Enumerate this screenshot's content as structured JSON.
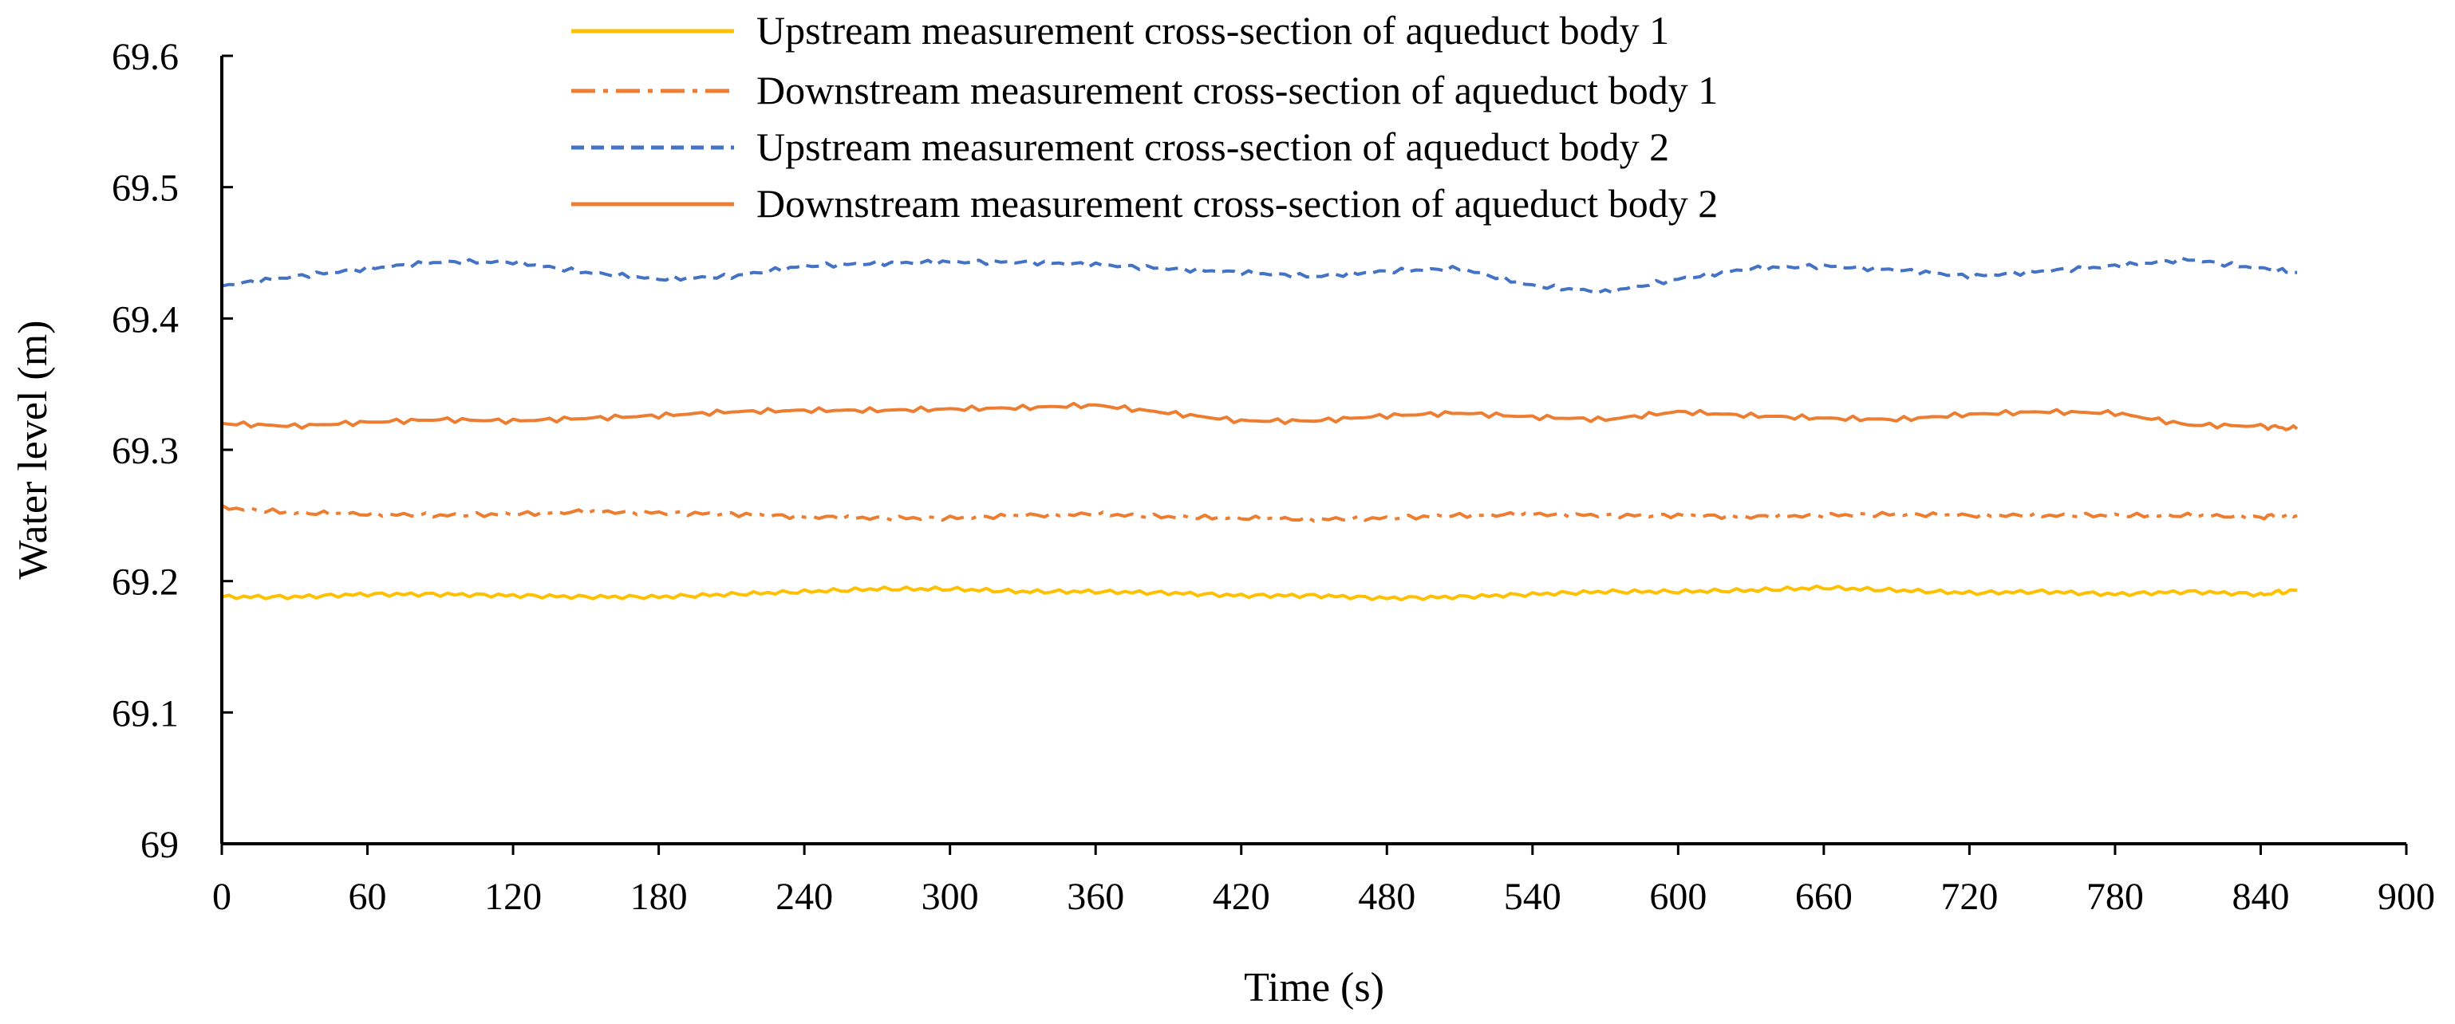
{
  "chart_data": {
    "type": "line",
    "title": "",
    "xlabel": "Time (s)",
    "ylabel": "Water level (m)",
    "xlim": [
      0,
      900
    ],
    "ylim": [
      69,
      69.6
    ],
    "grid": false,
    "legend_position": "top-center",
    "x_ticks": [
      "0",
      "60",
      "120",
      "180",
      "240",
      "300",
      "360",
      "420",
      "480",
      "540",
      "600",
      "660",
      "720",
      "780",
      "840",
      "900"
    ],
    "y_ticks": [
      "69",
      "69.1",
      "69.2",
      "69.3",
      "69.4",
      "69.5",
      "69.6"
    ],
    "x": [
      0,
      30,
      60,
      90,
      120,
      150,
      180,
      210,
      240,
      270,
      300,
      330,
      360,
      390,
      420,
      450,
      480,
      510,
      540,
      570,
      600,
      630,
      660,
      690,
      720,
      750,
      780,
      810,
      840,
      855
    ],
    "series": [
      {
        "name": "Upstream measurement cross-section of aqueduct body 1",
        "color": "#FFC000",
        "dash": "solid",
        "values": [
          69.188,
          69.188,
          69.19,
          69.19,
          69.189,
          69.188,
          69.188,
          69.19,
          69.192,
          69.194,
          69.194,
          69.192,
          69.192,
          69.191,
          69.189,
          69.189,
          69.187,
          69.188,
          69.19,
          69.192,
          69.192,
          69.193,
          69.195,
          69.193,
          69.191,
          69.192,
          69.19,
          69.192,
          69.19,
          69.193
        ]
      },
      {
        "name": "Downstream measurement cross-section of aqueduct body 1",
        "color": "#ED7D31",
        "dash": "dashdot",
        "values": [
          69.256,
          69.252,
          69.251,
          69.25,
          69.251,
          69.253,
          69.252,
          69.251,
          69.249,
          69.248,
          69.248,
          69.25,
          69.251,
          69.249,
          69.248,
          69.247,
          69.248,
          69.25,
          69.251,
          69.25,
          69.25,
          69.249,
          69.25,
          69.251,
          69.25,
          69.25,
          69.25,
          69.25,
          69.249,
          69.25
        ]
      },
      {
        "name": "Upstream measurement cross-section of aqueduct body 2",
        "color": "#4472C4",
        "dash": "dashed",
        "values": [
          69.425,
          69.432,
          69.438,
          69.443,
          69.443,
          69.435,
          69.43,
          69.432,
          69.44,
          69.442,
          69.443,
          69.443,
          69.441,
          69.438,
          69.435,
          69.432,
          69.436,
          69.438,
          69.425,
          69.42,
          69.43,
          69.438,
          69.44,
          69.437,
          69.432,
          69.436,
          69.44,
          69.445,
          69.438,
          69.435
        ]
      },
      {
        "name": "Downstream measurement cross-section of aqueduct body 2",
        "color": "#ED7D31",
        "dash": "solid",
        "values": [
          69.32,
          69.318,
          69.321,
          69.323,
          69.322,
          69.324,
          69.326,
          69.329,
          69.33,
          69.33,
          69.331,
          69.332,
          69.334,
          69.328,
          69.322,
          69.322,
          69.326,
          69.328,
          69.325,
          69.323,
          69.329,
          69.326,
          69.324,
          69.323,
          69.327,
          69.329,
          69.328,
          69.319,
          69.318,
          69.316
        ]
      }
    ]
  }
}
